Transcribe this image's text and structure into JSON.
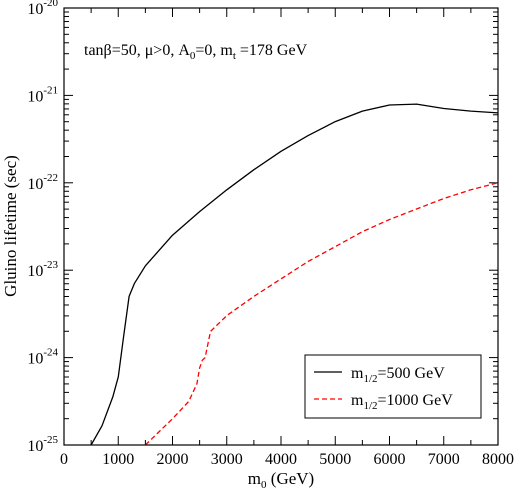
{
  "chart_data": {
    "type": "line",
    "xlabel": "m",
    "xlabel_sub": "0",
    "xlabel_unit": " (GeV)",
    "ylabel": "Gluino lifetime (sec)",
    "xlim": [
      0,
      8000
    ],
    "ylim_log10": [
      -25,
      -20
    ],
    "yscale": "log",
    "x_ticks": [
      0,
      1000,
      2000,
      3000,
      4000,
      5000,
      6000,
      7000,
      8000
    ],
    "y_tick_base": "10",
    "y_tick_exponents": [
      "-25",
      "-24",
      "-23",
      "-22",
      "-21",
      "-20"
    ],
    "annotation": {
      "part1": "tanβ=50,  μ>0,  A",
      "a_sub": "0",
      "part2": "=0,  m",
      "m_sub": "t",
      "part3": "  =178 GeV"
    },
    "legend_position": "bottom-right",
    "series": [
      {
        "name_main": "m",
        "name_sub": "1/2",
        "name_rest": "=500 GeV",
        "color": "#000000",
        "dash": "solid",
        "x": [
          500,
          700,
          900,
          1000,
          1100,
          1200,
          1300,
          1500,
          2000,
          2500,
          3000,
          3500,
          4000,
          4500,
          5000,
          5500,
          6000,
          6500,
          7000,
          7500,
          8000
        ],
        "log10_y": [
          -25.0,
          -24.78,
          -24.45,
          -24.22,
          -23.75,
          -23.3,
          -23.15,
          -22.95,
          -22.6,
          -22.33,
          -22.08,
          -21.85,
          -21.64,
          -21.46,
          -21.3,
          -21.18,
          -21.11,
          -21.1,
          -21.15,
          -21.18,
          -21.2
        ]
      },
      {
        "name_main": "m",
        "name_sub": "1/2",
        "name_rest": "=1000 GeV",
        "color": "#ff0000",
        "dash": "dashed",
        "x": [
          1500,
          1700,
          2000,
          2300,
          2450,
          2500,
          2550,
          2600,
          2650,
          2700,
          3000,
          3500,
          4000,
          4500,
          5000,
          5500,
          6000,
          6500,
          7000,
          7500,
          8000
        ],
        "log10_y": [
          -25.0,
          -24.88,
          -24.7,
          -24.5,
          -24.3,
          -24.12,
          -24.03,
          -24.0,
          -23.85,
          -23.7,
          -23.52,
          -23.3,
          -23.1,
          -22.9,
          -22.73,
          -22.56,
          -22.42,
          -22.3,
          -22.18,
          -22.08,
          -22.0
        ]
      }
    ]
  }
}
